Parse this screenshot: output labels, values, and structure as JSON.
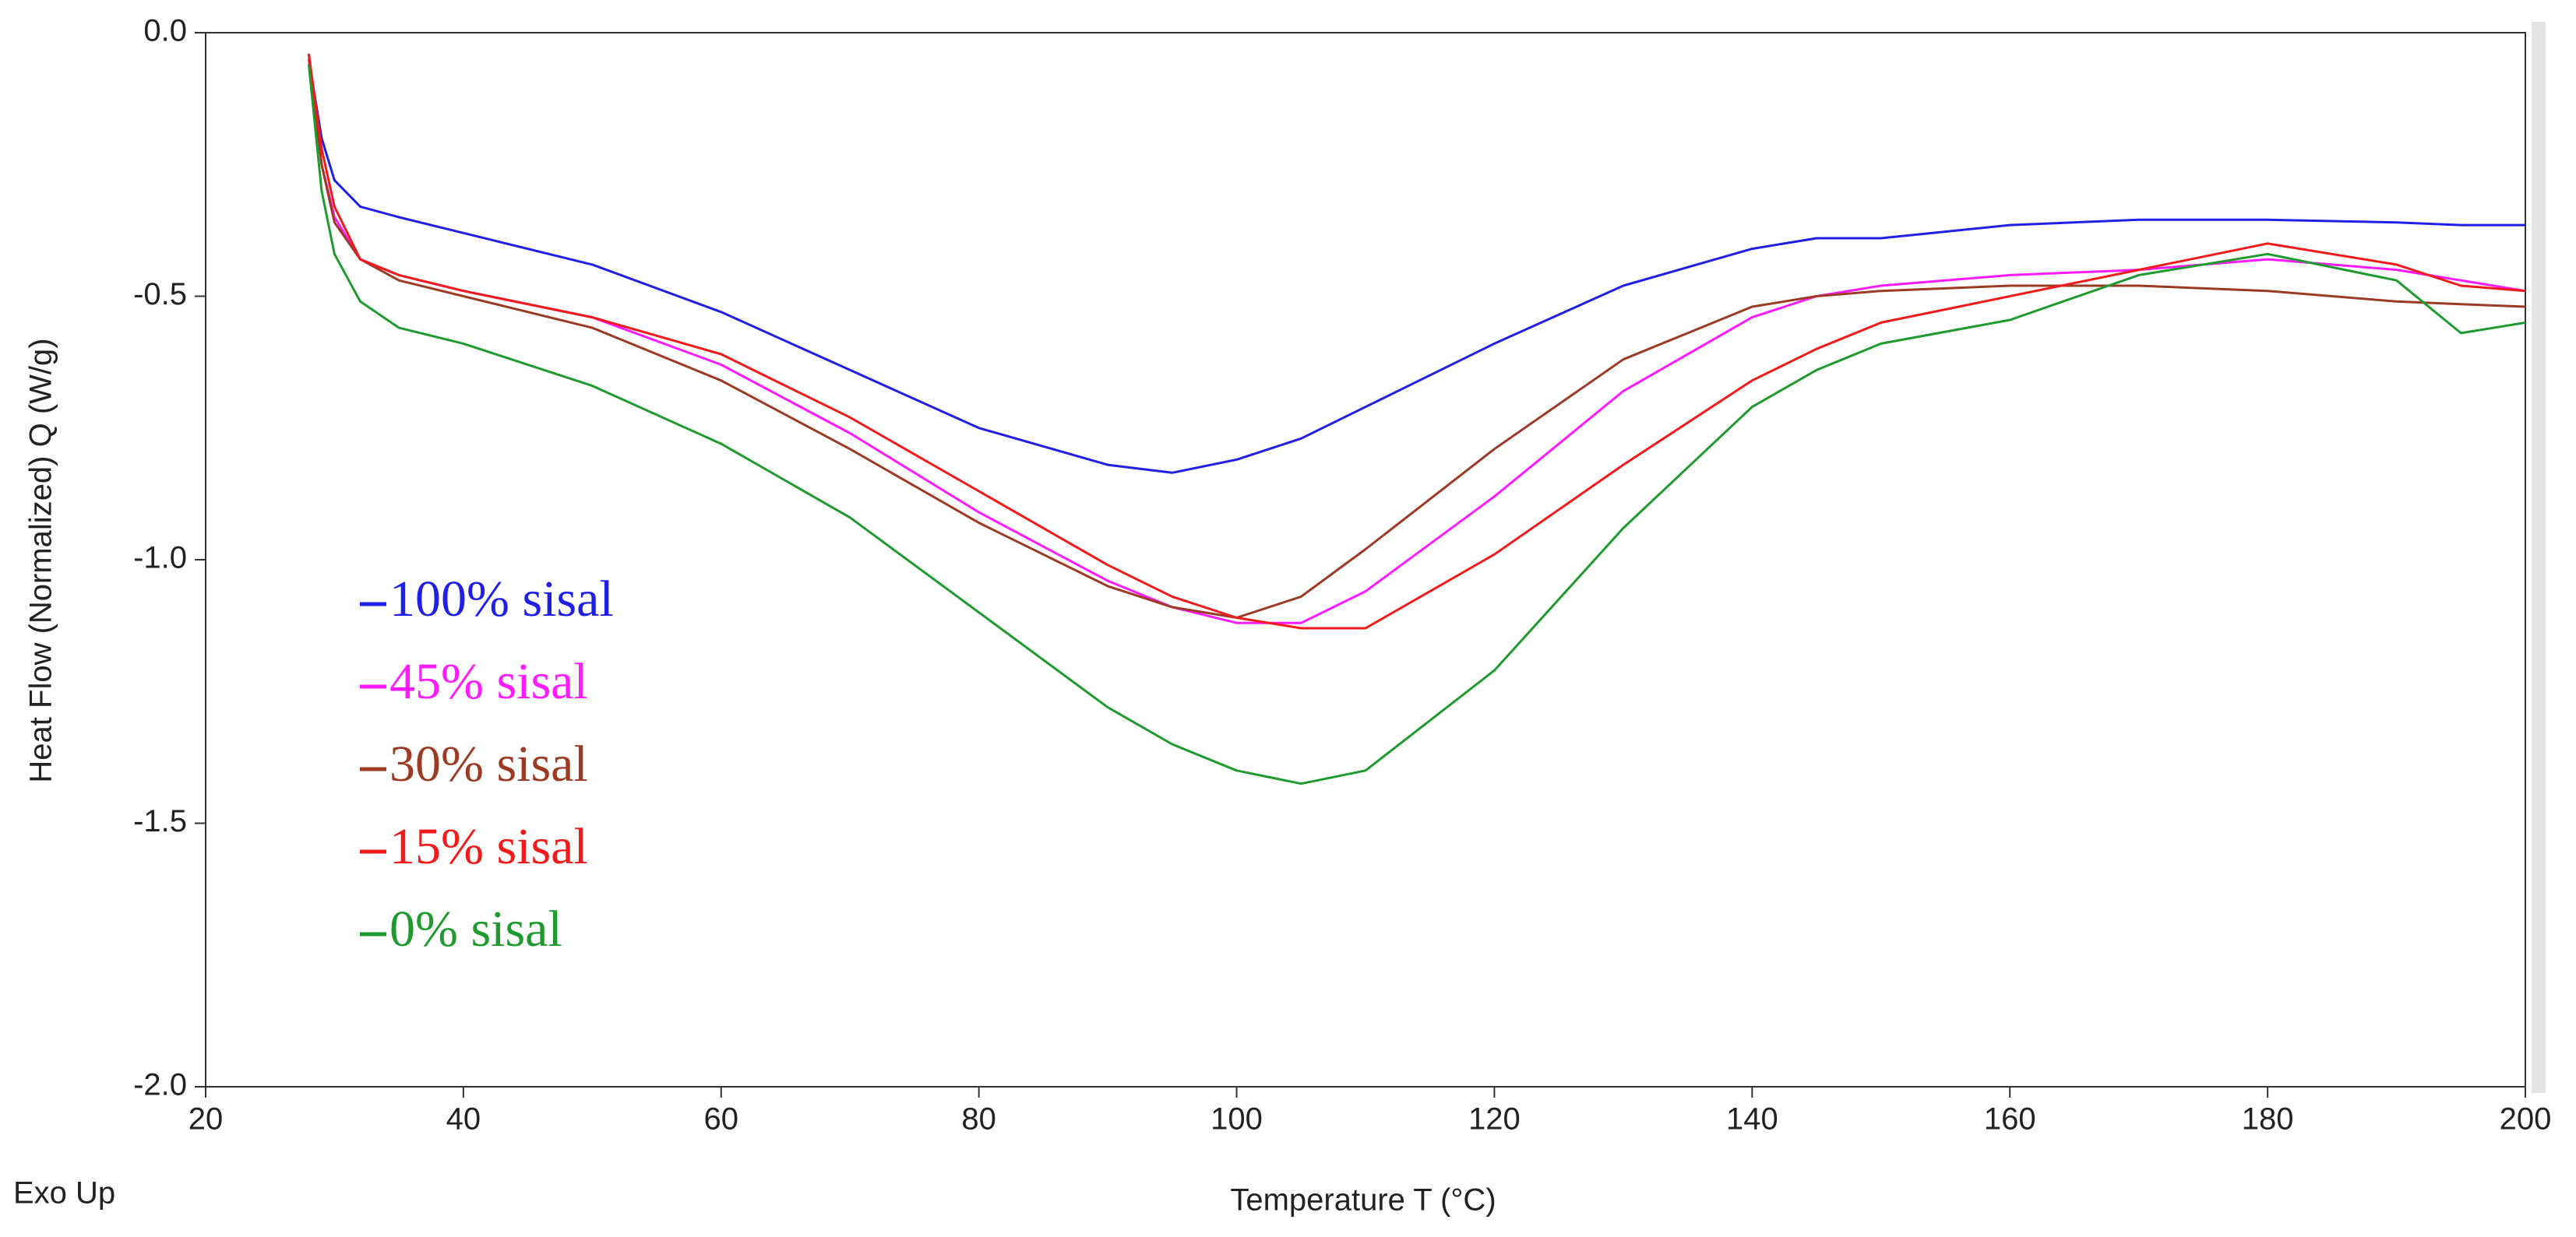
{
  "chart_data": {
    "type": "line",
    "x_label": "Temperature T (°C)",
    "y_label": "Heat Flow (Normalized) Q (W/g)",
    "annotation": "Exo Up",
    "xlim": [
      20,
      200
    ],
    "xticks": [
      20,
      40,
      60,
      80,
      100,
      120,
      140,
      160,
      180,
      200
    ],
    "ylim": [
      -2,
      0
    ],
    "yticks": [
      {
        "value": 0,
        "label": "0.0"
      },
      -0.5,
      {
        "value": -1,
        "label": "-1.0"
      },
      -1.5,
      {
        "value": -2,
        "label": "-2.0"
      }
    ],
    "x": [
      28,
      29,
      30,
      32,
      35,
      40,
      50,
      60,
      70,
      80,
      90,
      95,
      100,
      105,
      110,
      120,
      130,
      140,
      145,
      150,
      160,
      170,
      180,
      190,
      195,
      200
    ],
    "series": [
      {
        "name": "100% sisal",
        "color": "#1f1fe6",
        "values": [
          -0.05,
          -0.2,
          -0.28,
          -0.33,
          -0.35,
          -0.38,
          -0.44,
          -0.53,
          -0.64,
          -0.75,
          -0.82,
          -0.835,
          -0.81,
          -0.77,
          -0.71,
          -0.59,
          -0.48,
          -0.41,
          -0.39,
          -0.39,
          -0.365,
          -0.355,
          -0.355,
          -0.36,
          -0.365,
          -0.365
        ]
      },
      {
        "name": "45% sisal",
        "color": "#ff1aff",
        "values": [
          -0.05,
          -0.25,
          -0.35,
          -0.43,
          -0.46,
          -0.49,
          -0.54,
          -0.63,
          -0.76,
          -0.91,
          -1.04,
          -1.09,
          -1.12,
          -1.12,
          -1.06,
          -0.88,
          -0.68,
          -0.54,
          -0.5,
          -0.48,
          -0.46,
          -0.45,
          -0.43,
          -0.45,
          -0.47,
          -0.49
        ]
      },
      {
        "name": "30% sisal",
        "color": "#9c3a24",
        "values": [
          -0.04,
          -0.25,
          -0.36,
          -0.43,
          -0.47,
          -0.5,
          -0.56,
          -0.66,
          -0.79,
          -0.93,
          -1.05,
          -1.09,
          -1.11,
          -1.07,
          -0.98,
          -0.79,
          -0.62,
          -0.52,
          -0.5,
          -0.49,
          -0.48,
          -0.48,
          -0.49,
          -0.51,
          -0.515,
          -0.52
        ]
      },
      {
        "name": "15% sisal",
        "color": "#f21a1a",
        "values": [
          -0.04,
          -0.22,
          -0.33,
          -0.43,
          -0.46,
          -0.49,
          -0.54,
          -0.61,
          -0.73,
          -0.87,
          -1.01,
          -1.07,
          -1.11,
          -1.13,
          -1.13,
          -0.99,
          -0.82,
          -0.66,
          -0.6,
          -0.55,
          -0.5,
          -0.45,
          -0.4,
          -0.44,
          -0.48,
          -0.49
        ]
      },
      {
        "name": "0% sisal",
        "color": "#1e9a2e",
        "values": [
          -0.06,
          -0.3,
          -0.42,
          -0.51,
          -0.56,
          -0.59,
          -0.67,
          -0.78,
          -0.92,
          -1.1,
          -1.28,
          -1.35,
          -1.4,
          -1.425,
          -1.4,
          -1.21,
          -0.94,
          -0.71,
          -0.64,
          -0.59,
          -0.545,
          -0.46,
          -0.42,
          -0.47,
          -0.57,
          -0.55
        ]
      }
    ]
  }
}
